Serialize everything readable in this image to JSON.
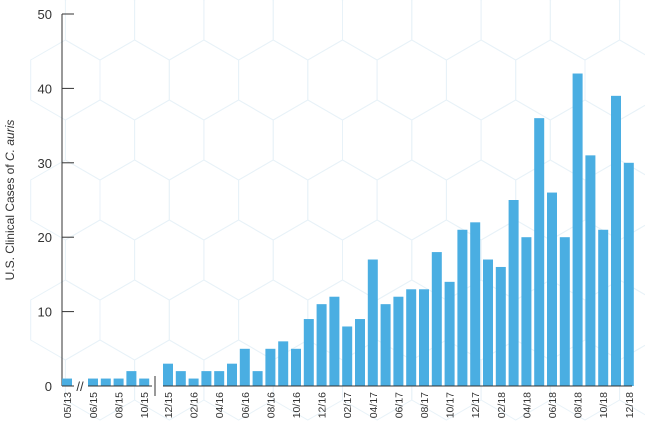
{
  "chart_data": {
    "type": "bar",
    "ylabel_prefix": "U.S. Clinical Cases of ",
    "ylabel_italic": "C. auris",
    "ylim": [
      0,
      50
    ],
    "yticks": [
      0,
      10,
      20,
      30,
      40,
      50
    ],
    "bar_color": "#4aaee2",
    "axis_break": "//",
    "segments": [
      {
        "categories": [
          "05/13"
        ],
        "values": [
          1
        ]
      },
      {
        "categories": [
          "06/15",
          "07/15",
          "08/15",
          "09/15",
          "10/15"
        ],
        "values": [
          1,
          1,
          1,
          2,
          1
        ]
      },
      {
        "categories": [
          "12/15",
          "01/16",
          "02/16",
          "03/16",
          "04/16",
          "05/16",
          "06/16",
          "07/16",
          "08/16",
          "09/16",
          "10/16",
          "11/16",
          "12/16",
          "01/17",
          "02/17",
          "03/17",
          "04/17",
          "05/17",
          "06/17",
          "07/17",
          "08/17",
          "09/17",
          "10/17",
          "11/17",
          "12/17",
          "01/18",
          "02/18",
          "03/18",
          "04/18",
          "05/18",
          "06/18",
          "07/18",
          "08/18",
          "09/18",
          "10/18",
          "11/18",
          "12/18"
        ],
        "values": [
          3,
          2,
          1,
          2,
          2,
          3,
          5,
          2,
          5,
          6,
          5,
          9,
          11,
          12,
          8,
          9,
          17,
          11,
          12,
          13,
          13,
          18,
          14,
          21,
          22,
          17,
          16,
          25,
          20,
          36,
          26,
          20,
          42,
          31,
          21,
          39,
          30
        ]
      }
    ],
    "xtick_labels": [
      "05/13",
      "06/15",
      "08/15",
      "10/15",
      "12/15",
      "02/16",
      "04/16",
      "06/16",
      "08/16",
      "10/16",
      "12/16",
      "02/17",
      "04/17",
      "06/17",
      "08/17",
      "10/17",
      "12/17",
      "02/18",
      "04/18",
      "06/18",
      "08/18",
      "10/18",
      "12/18"
    ]
  }
}
